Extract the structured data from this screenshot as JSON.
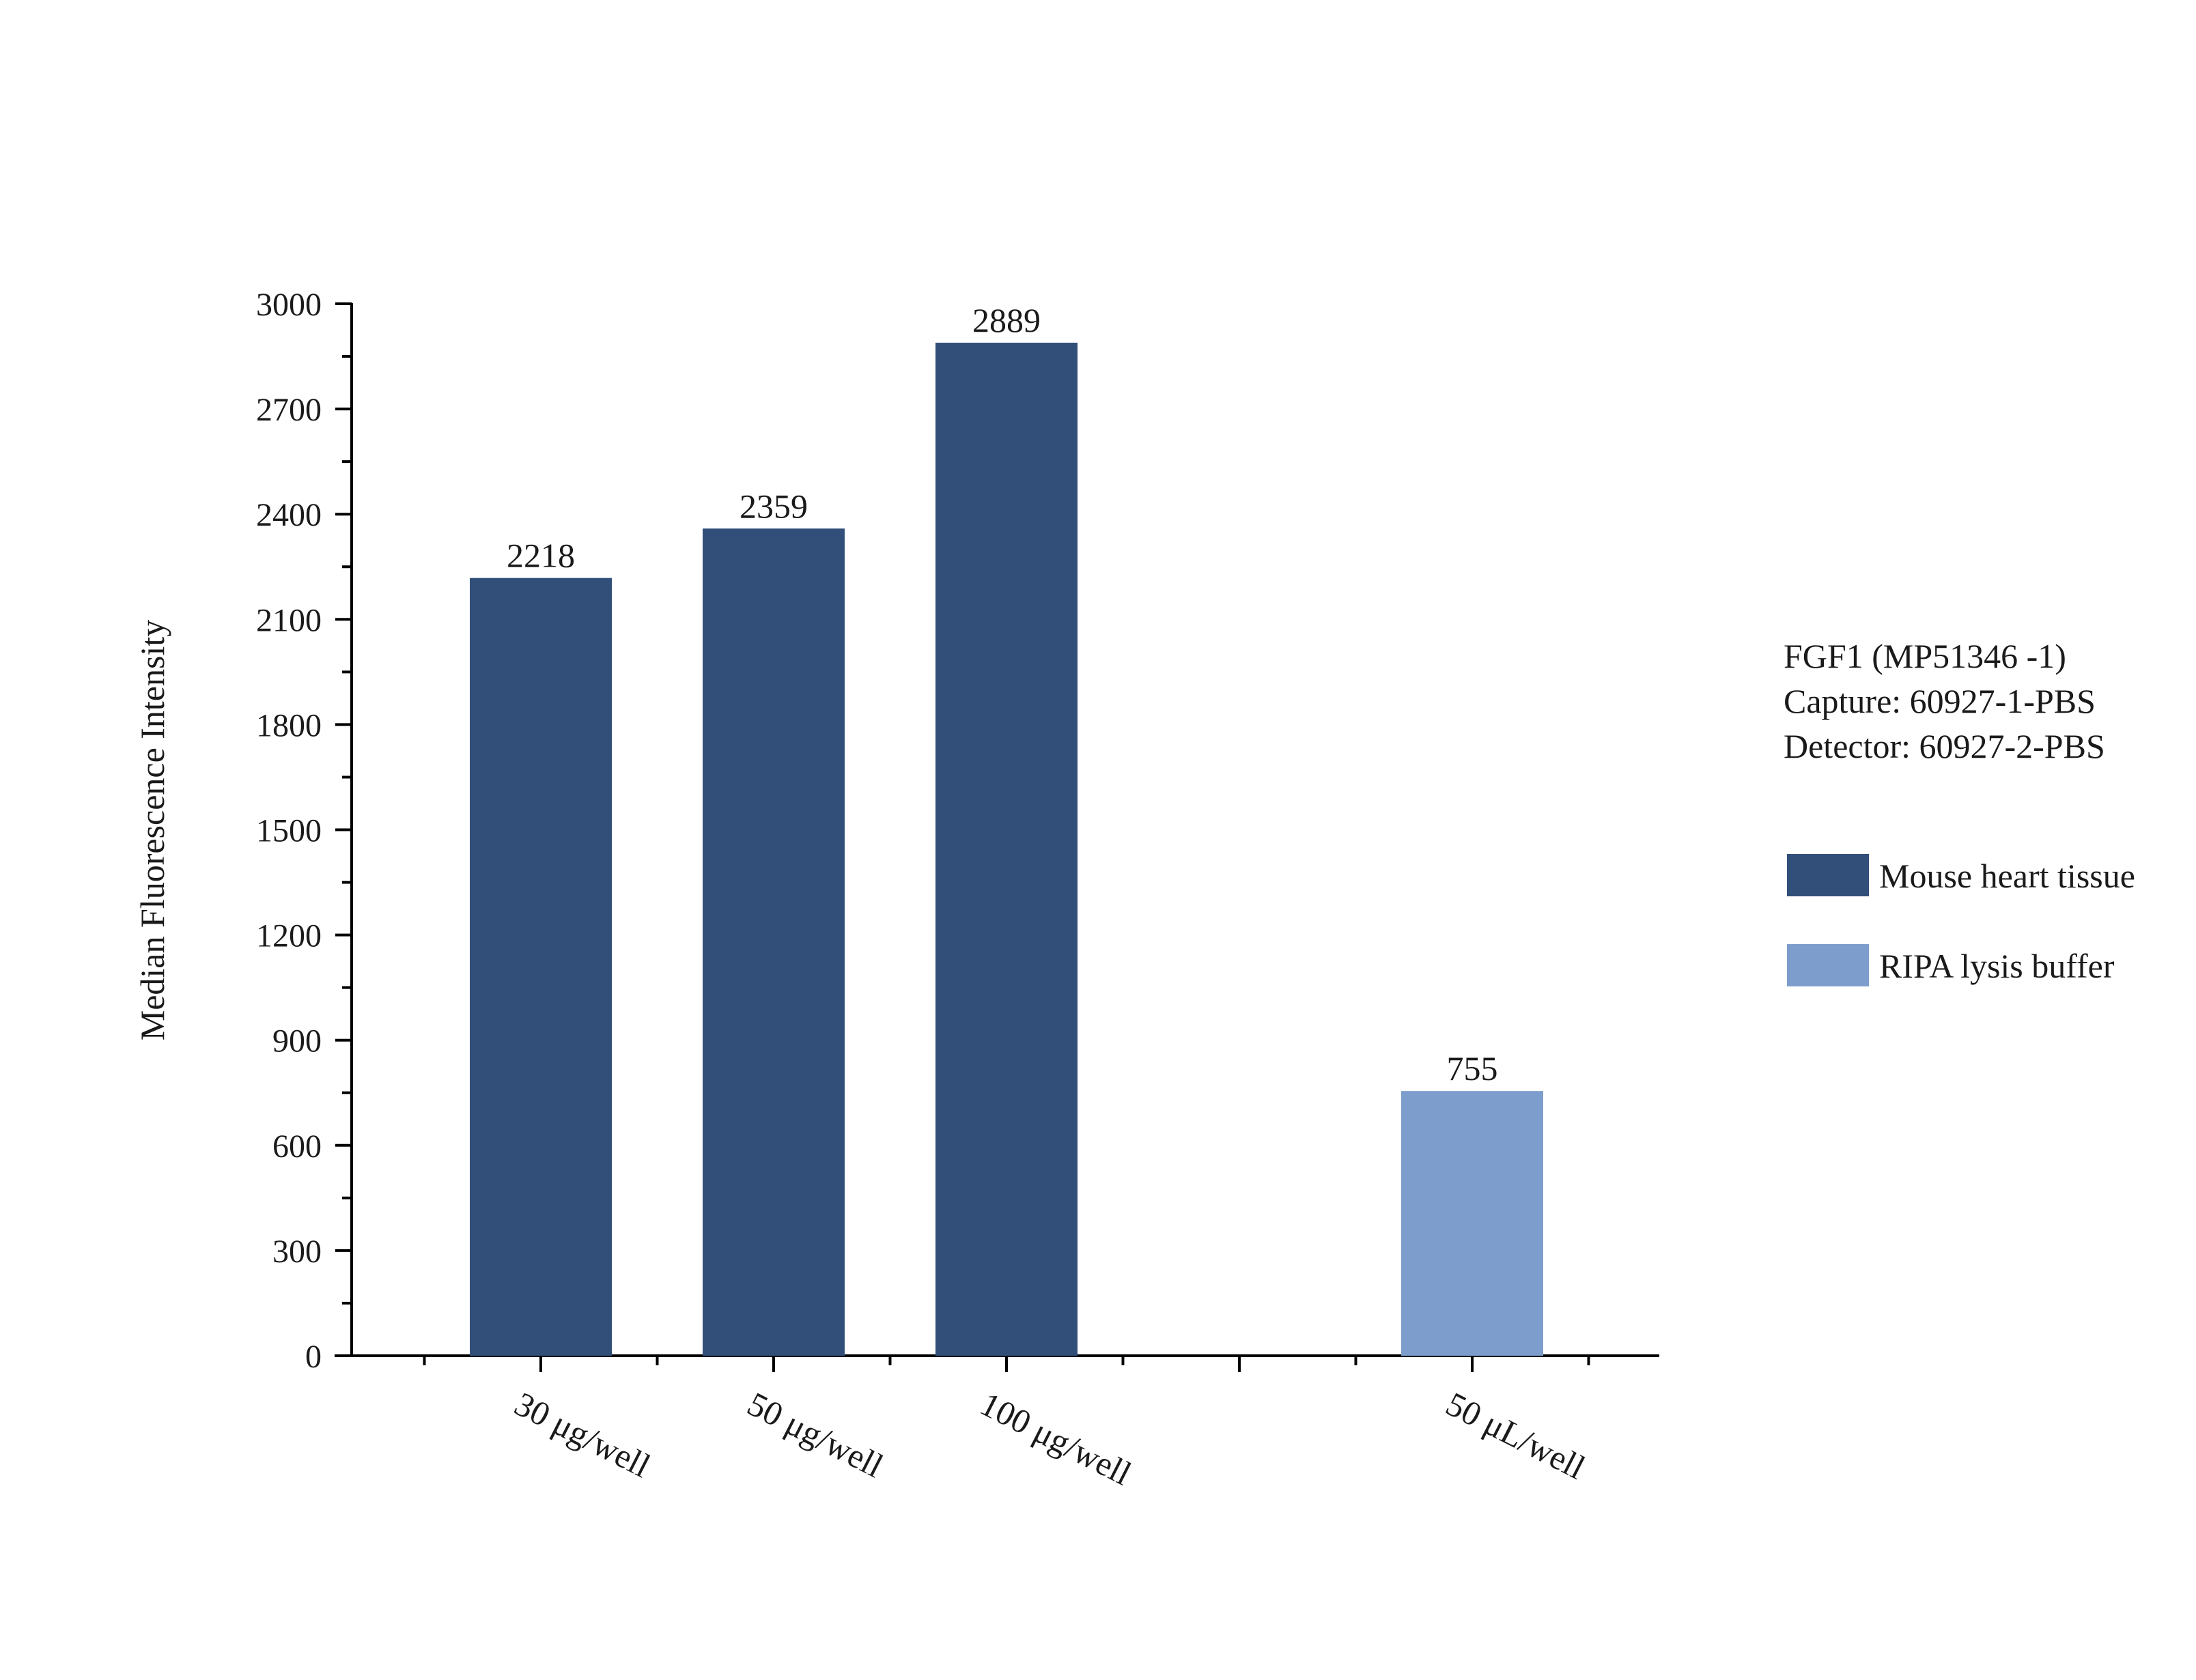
{
  "chart_data": {
    "type": "bar",
    "title": "",
    "xlabel": "",
    "ylabel": "Median Fluorescence Intensity",
    "ylim": [
      0,
      3000
    ],
    "yticks": [
      0,
      300,
      600,
      900,
      1200,
      1500,
      1800,
      2100,
      2400,
      2700,
      3000
    ],
    "grid": false,
    "legend_position": "right",
    "categories": [
      "30 μg/well",
      "50 μg/well",
      "100 μg/well",
      "",
      "50 μL/well"
    ],
    "series": [
      {
        "name": "Mouse heart tissue",
        "color": "#314f79",
        "values": [
          2218,
          2359,
          2889,
          null,
          null
        ]
      },
      {
        "name": "RIPA lysis buffer",
        "color": "#7d9ecc",
        "values": [
          null,
          null,
          null,
          null,
          755
        ]
      }
    ],
    "data_labels": [
      "2218",
      "2359",
      "2889",
      "",
      "755"
    ],
    "annotation": {
      "lines": [
        "FGF1 (MP51346 -1)",
        "Capture: 60927-1-PBS",
        "Detector: 60927-2-PBS"
      ]
    }
  }
}
